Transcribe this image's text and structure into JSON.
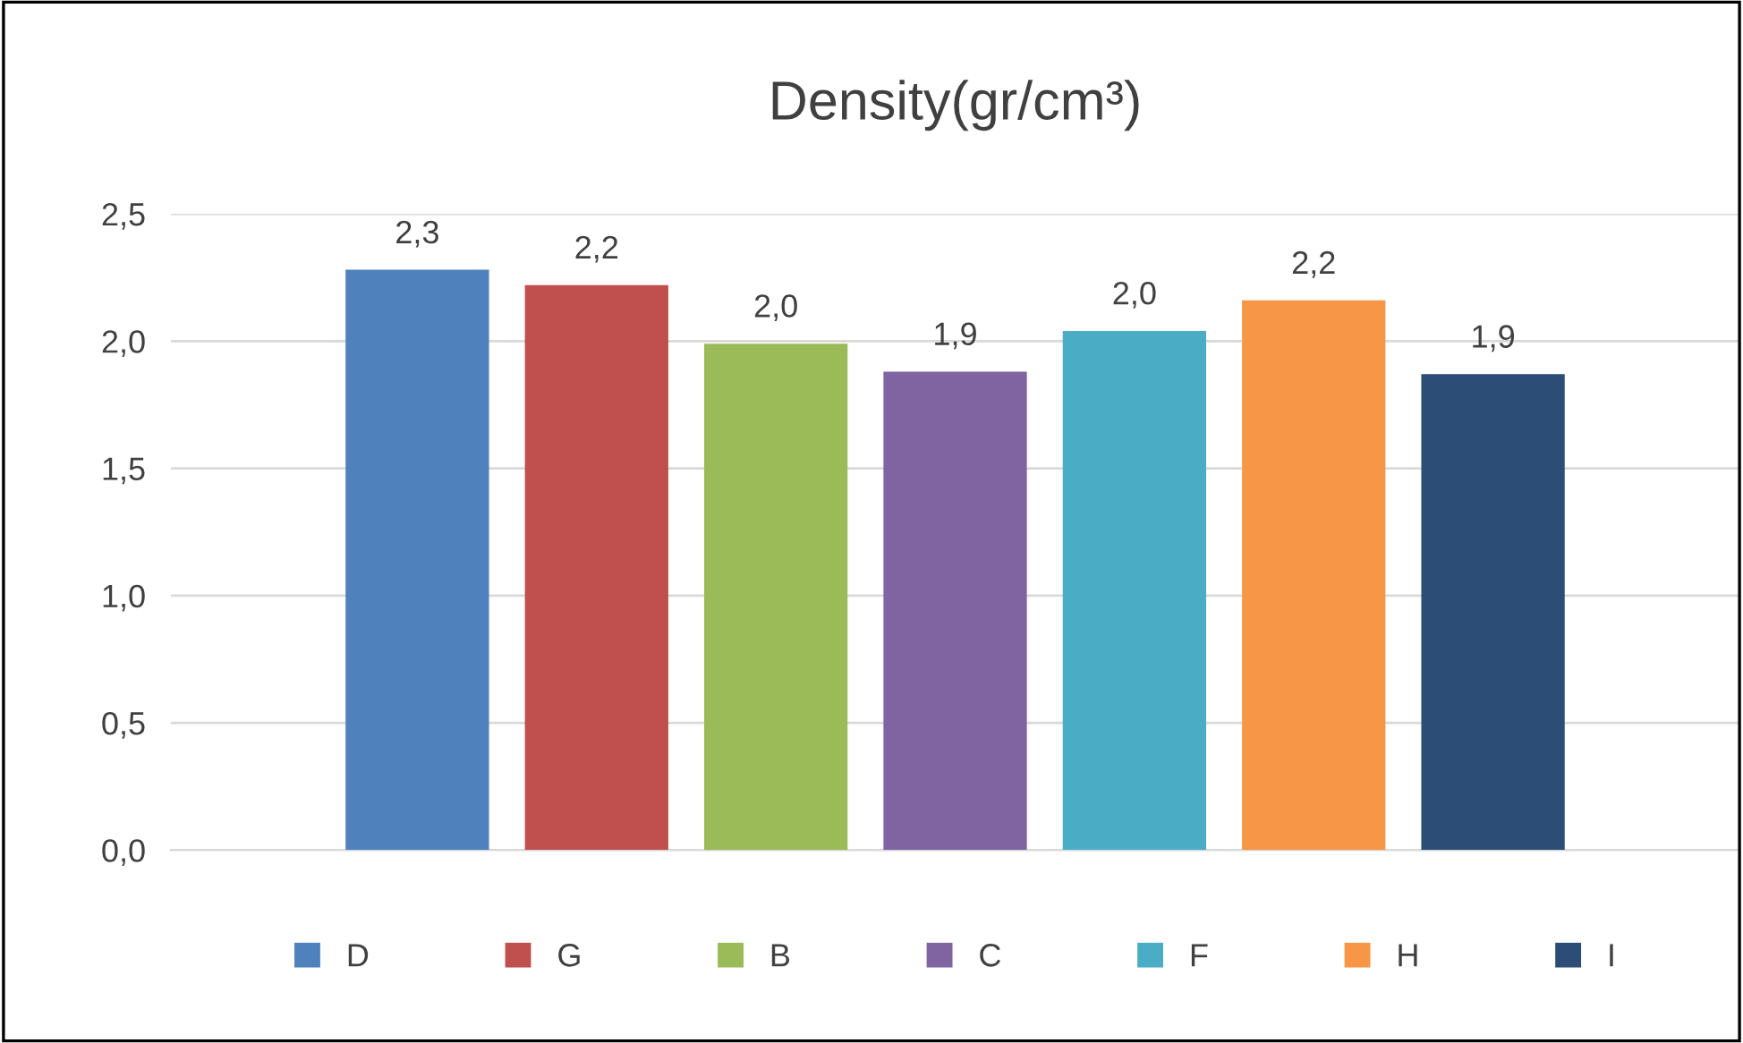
{
  "chart_data": {
    "type": "bar",
    "title": "Density(gr/cm³)",
    "categories": [
      null
    ],
    "series": [
      {
        "name": "D",
        "color": "#4f81bd",
        "values": [
          2.28
        ],
        "value_labels": [
          "2,3"
        ]
      },
      {
        "name": "G",
        "color": "#c0504d",
        "values": [
          2.22
        ],
        "value_labels": [
          "2,2"
        ]
      },
      {
        "name": "B",
        "color": "#9bbb59",
        "values": [
          1.99
        ],
        "value_labels": [
          "2,0"
        ]
      },
      {
        "name": "C",
        "color": "#8064a2",
        "values": [
          1.88
        ],
        "value_labels": [
          "1,9"
        ]
      },
      {
        "name": "F",
        "color": "#4bacc6",
        "values": [
          2.04
        ],
        "value_labels": [
          "2,0"
        ]
      },
      {
        "name": "H",
        "color": "#f79646",
        "values": [
          2.16
        ],
        "value_labels": [
          "2,2"
        ]
      },
      {
        "name": "I",
        "color": "#2c4d75",
        "values": [
          1.87
        ],
        "value_labels": [
          "1,9"
        ]
      }
    ],
    "ylim": [
      0,
      2.5
    ],
    "yticks": [
      {
        "value": 0,
        "label": "0,0"
      },
      {
        "value": 0.5,
        "label": "0,5"
      },
      {
        "value": 1,
        "label": "1,0"
      },
      {
        "value": 1.5,
        "label": "1,5"
      },
      {
        "value": 2,
        "label": "2,0"
      },
      {
        "value": 2.5,
        "label": "2,5"
      }
    ],
    "grid": "y",
    "legend": "bottom",
    "tick_labels": "y"
  }
}
